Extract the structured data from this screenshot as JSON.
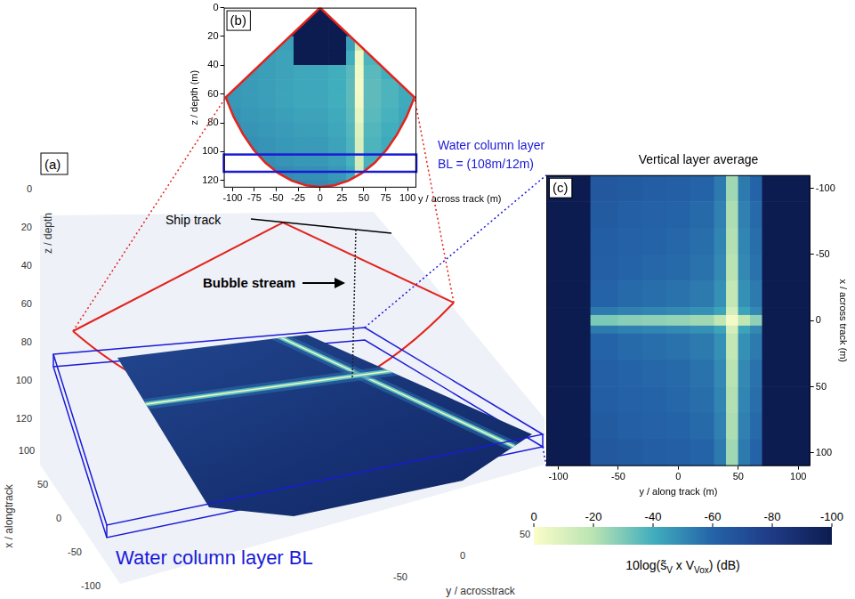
{
  "chart_data": [
    {
      "panel": "(b)",
      "type": "heatmap",
      "x_label": "y / across track (m)",
      "y_label": "z / depth (m)",
      "xlim": [
        -110,
        110
      ],
      "xticks": [
        -100,
        -75,
        -50,
        -25,
        0,
        25,
        50,
        75,
        100
      ],
      "ylim": [
        125,
        0
      ],
      "yticks": [
        0,
        20,
        40,
        60,
        80,
        100,
        120
      ],
      "x_edges": [
        -110,
        -90,
        -70,
        -50,
        -30,
        -10,
        10,
        30,
        40,
        50,
        70,
        90,
        110
      ],
      "y_edges": [
        0,
        10,
        20,
        30,
        40,
        50,
        60,
        70,
        80,
        90,
        100,
        110,
        120,
        130
      ],
      "cells": [
        [
          null,
          null,
          null,
          null,
          -100,
          -100,
          -100,
          null,
          null,
          null,
          null,
          null
        ],
        [
          null,
          null,
          null,
          -100,
          -100,
          -100,
          -100,
          -100,
          null,
          null,
          null,
          null
        ],
        [
          null,
          null,
          -44,
          -44,
          -100,
          -100,
          -100,
          -44,
          -15,
          -40,
          null,
          null
        ],
        [
          null,
          null,
          -44,
          -43,
          -100,
          -100,
          -100,
          -40,
          -4,
          -38,
          null,
          null
        ],
        [
          null,
          -45,
          -44,
          -43,
          -42,
          -42,
          -40,
          -36,
          -3,
          -36,
          -40,
          null
        ],
        [
          -46,
          -45,
          -44,
          -43,
          -42,
          -42,
          -40,
          -35,
          -2,
          -35,
          -38,
          -41
        ],
        [
          -46,
          -45,
          -44,
          -43,
          -42,
          -42,
          -40,
          -35,
          -3,
          -35,
          -38,
          -41
        ],
        [
          -47,
          -46,
          -45,
          -44,
          -43,
          -43,
          -41,
          -36,
          -6,
          -36,
          -39,
          -42
        ],
        [
          -48,
          -47,
          -46,
          -45,
          -44,
          -44,
          -42,
          -37,
          -9,
          -37,
          -40,
          -43
        ],
        [
          null,
          -48,
          -47,
          -46,
          -45,
          -45,
          -43,
          -38,
          -11,
          -38,
          -41,
          null
        ],
        [
          null,
          -49,
          -48,
          -47,
          -46,
          -46,
          -44,
          -39,
          -12,
          -39,
          -42,
          null
        ],
        [
          null,
          null,
          -50,
          -49,
          -48,
          -48,
          -46,
          -41,
          -13,
          -41,
          null,
          null
        ],
        [
          null,
          null,
          null,
          -51,
          -50,
          -50,
          -48,
          -43,
          null,
          null,
          null,
          null
        ]
      ],
      "swath_outline": {
        "color": "#e3231c",
        "x": [
          0,
          -107.8,
          -98.8,
          -88,
          -75.8,
          -62.3,
          -47.6,
          -32.2,
          -16.2,
          0,
          16.2,
          32.2,
          47.6,
          62.3,
          75.8,
          88,
          98.8,
          107.8,
          0
        ],
        "y": [
          0,
          62.3,
          75.8,
          88,
          98.8,
          107.8,
          115,
          120.3,
          123.4,
          124.5,
          123.4,
          120.3,
          115,
          107.8,
          98.8,
          88,
          75.8,
          62.3,
          0
        ]
      },
      "layer": {
        "label_lines": [
          "Water column layer",
          "BL = (108m/12m)"
        ],
        "depth": 108,
        "thickness": 12,
        "color": "#1a1ad6"
      }
    },
    {
      "panel": "(c)",
      "type": "heatmap",
      "title": "Vertical layer average",
      "x_label": "y / along track (m)",
      "y_label": "x / across track (m)",
      "xlim": [
        -110,
        110
      ],
      "xticks": [
        -100,
        -50,
        0,
        50,
        100
      ],
      "ylim": [
        110,
        -110
      ],
      "yticks": [
        -100,
        -50,
        0,
        50,
        100
      ],
      "x_edges": [
        -110,
        -73,
        -50,
        -30,
        -10,
        10,
        30,
        40,
        50,
        60,
        70,
        110
      ],
      "y_edges": [
        -110,
        -90,
        -70,
        -50,
        -30,
        -10,
        -4,
        4,
        10,
        30,
        50,
        70,
        90,
        110
      ],
      "cells": [
        [
          -100,
          -66,
          -64,
          -63,
          -62,
          -60,
          -54,
          -24,
          -54,
          -60,
          -100
        ],
        [
          -100,
          -64,
          -62,
          -61,
          -60,
          -58,
          -52,
          -22,
          -52,
          -58,
          -100
        ],
        [
          -100,
          -63,
          -61,
          -60,
          -59,
          -57,
          -51,
          -21,
          -51,
          -57,
          -100
        ],
        [
          -100,
          -62,
          -60,
          -59,
          -58,
          -56,
          -50,
          -20,
          -50,
          -56,
          -100
        ],
        [
          -100,
          -60,
          -58,
          -57,
          -56,
          -54,
          -48,
          -17,
          -48,
          -54,
          -100
        ],
        [
          -100,
          -54,
          -52,
          -51,
          -50,
          -48,
          -43,
          -12,
          -43,
          -50,
          -100
        ],
        [
          -100,
          -30,
          -28,
          -27,
          -26,
          -24,
          -18,
          -2,
          -18,
          -27,
          -100
        ],
        [
          -100,
          -54,
          -52,
          -51,
          -50,
          -48,
          -43,
          -12,
          -43,
          -50,
          -100
        ],
        [
          -100,
          -60,
          -58,
          -57,
          -56,
          -54,
          -48,
          -17,
          -48,
          -54,
          -100
        ],
        [
          -100,
          -62,
          -60,
          -59,
          -58,
          -56,
          -50,
          -20,
          -50,
          -56,
          -100
        ],
        [
          -100,
          -63,
          -61,
          -60,
          -59,
          -57,
          -51,
          -21,
          -51,
          -57,
          -100
        ],
        [
          -100,
          -64,
          -62,
          -61,
          -60,
          -58,
          -52,
          -22,
          -52,
          -58,
          -100
        ],
        [
          -100,
          -66,
          -64,
          -63,
          -62,
          -60,
          -54,
          -24,
          -54,
          -60,
          -100
        ]
      ]
    }
  ],
  "colorbar": {
    "range": [
      0,
      -100
    ],
    "ticks": [
      0,
      -20,
      -40,
      -60,
      -80,
      -100
    ],
    "label_parts": [
      {
        "text": "10log(s̃"
      },
      {
        "text": "V",
        "sub": true
      },
      {
        "text": " x V"
      },
      {
        "text": "Vox",
        "sub": true
      },
      {
        "text": ") (dB)"
      }
    ]
  },
  "scene": {
    "panel": "(a)",
    "z_label": "z / depth",
    "z_ticks": [
      0,
      20,
      40,
      60,
      80,
      100,
      120
    ],
    "x_label": "x / alongtrack",
    "x_ticks": [
      100,
      50,
      0,
      -50,
      -100
    ],
    "y_label": "y / acrosstrack",
    "y_ticks": [
      -50,
      0,
      50
    ],
    "ship_track": "Ship track",
    "bubble_stream": "Bubble stream",
    "layer_label": "Water column layer BL"
  }
}
